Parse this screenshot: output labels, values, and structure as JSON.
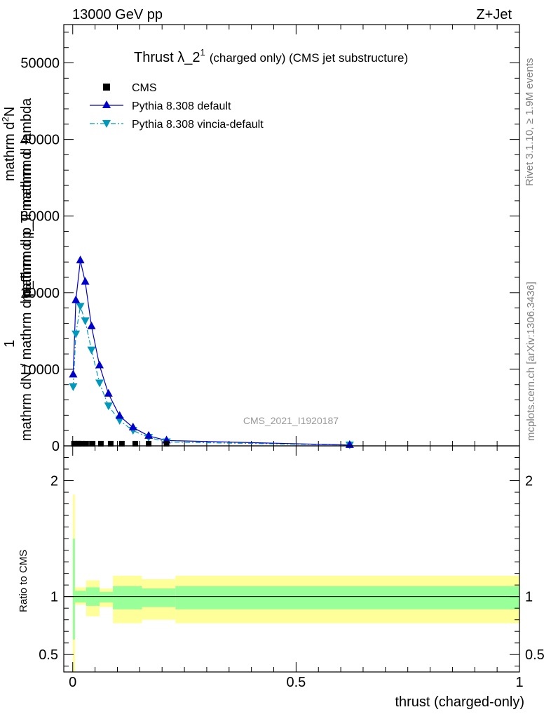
{
  "header": {
    "left": "13000 GeV pp",
    "right": "Z+Jet"
  },
  "title": {
    "main": "Thrust λ_2",
    "sup": "1",
    "detail": "(charged only) (CMS jet substructure)"
  },
  "side_labels": {
    "rivet": "Rivet 3.1.10, ≥ 1.9M events",
    "mcplots": "mcplots.cern.ch [arXiv:1306.3436]"
  },
  "watermark": "CMS_2021_I1920187",
  "y_axis_main": {
    "line1": "mathrm d",
    "line1_sup": "2",
    "line1_rest": "N",
    "line2": "mathrm d p_T mathrm d lambda",
    "line3": "mathrm d p_T mathrm d",
    "fraction_top": "1",
    "fraction_bottom": "mathrm dN / mathrm d p_T"
  },
  "y_axis_ratio": "Ratio to CMS",
  "x_axis_label": "thrust (charged-only)",
  "legend": [
    {
      "label": "CMS",
      "marker": "square",
      "color": "#000000"
    },
    {
      "label": "Pythia 8.308 default",
      "marker": "triangle-up",
      "color": "#0000cc"
    },
    {
      "label": "Pythia 8.308 vincia-default",
      "marker": "triangle-down",
      "color": "#0099bb"
    }
  ],
  "chart_data": {
    "type": "line",
    "xlim": [
      -0.02,
      1.0
    ],
    "ylim_main": [
      0,
      55000
    ],
    "ylim_ratio": [
      0.35,
      2.3
    ],
    "main_ticks": [
      {
        "v": 0,
        "label": "0"
      },
      {
        "v": 10000,
        "label": "10000"
      },
      {
        "v": 20000,
        "label": "20000"
      },
      {
        "v": 30000,
        "label": "30000"
      },
      {
        "v": 40000,
        "label": "40000"
      },
      {
        "v": 50000,
        "label": "50000"
      }
    ],
    "ratio_ticks": [
      {
        "v": 0.5,
        "label": "0.5"
      },
      {
        "v": 1,
        "label": "1"
      },
      {
        "v": 2,
        "label": "2"
      }
    ],
    "x_ticks": [
      {
        "v": 0,
        "label": "0"
      },
      {
        "v": 0.5,
        "label": "0.5"
      },
      {
        "v": 1,
        "label": "1"
      }
    ],
    "series": [
      {
        "name": "CMS",
        "x": [
          0.003,
          0.008,
          0.013,
          0.02,
          0.03,
          0.043,
          0.063,
          0.085,
          0.11,
          0.14,
          0.17,
          0.21
        ],
        "y": [
          100,
          100,
          100,
          100,
          100,
          100,
          100,
          100,
          100,
          100,
          100,
          100
        ]
      },
      {
        "name": "Pythia 8.308 default",
        "x": [
          0.001,
          0.007,
          0.017,
          0.028,
          0.042,
          0.06,
          0.08,
          0.105,
          0.135,
          0.17,
          0.21,
          0.62
        ],
        "y": [
          9300,
          19000,
          24200,
          21400,
          15600,
          10500,
          6800,
          3900,
          2400,
          1300,
          700,
          100
        ]
      },
      {
        "name": "Pythia 8.308 vincia-default",
        "x": [
          0.001,
          0.007,
          0.017,
          0.028,
          0.042,
          0.06,
          0.08,
          0.105,
          0.135,
          0.17,
          0.21,
          0.62
        ],
        "y": [
          7700,
          14600,
          18200,
          16300,
          12500,
          8200,
          5200,
          3300,
          2000,
          1100,
          500,
          100
        ]
      }
    ],
    "ratio_band_outer": [
      {
        "x0": 0.0,
        "x1": 0.005,
        "lo": 0.35,
        "hi": 1.88
      },
      {
        "x0": 0.005,
        "x1": 0.03,
        "lo": 0.93,
        "hi": 1.08
      },
      {
        "x0": 0.03,
        "x1": 0.06,
        "lo": 0.83,
        "hi": 1.14
      },
      {
        "x0": 0.06,
        "x1": 0.09,
        "lo": 0.91,
        "hi": 1.07
      },
      {
        "x0": 0.09,
        "x1": 0.155,
        "lo": 0.77,
        "hi": 1.18
      },
      {
        "x0": 0.155,
        "x1": 0.23,
        "lo": 0.8,
        "hi": 1.15
      },
      {
        "x0": 0.23,
        "x1": 1.0,
        "lo": 0.77,
        "hi": 1.18
      }
    ],
    "ratio_band_inner": [
      {
        "x0": 0.0,
        "x1": 0.005,
        "lo": 0.63,
        "hi": 1.5
      },
      {
        "x0": 0.005,
        "x1": 0.03,
        "lo": 0.95,
        "hi": 1.05
      },
      {
        "x0": 0.03,
        "x1": 0.06,
        "lo": 0.92,
        "hi": 1.08
      },
      {
        "x0": 0.06,
        "x1": 0.09,
        "lo": 0.95,
        "hi": 1.04
      },
      {
        "x0": 0.09,
        "x1": 0.155,
        "lo": 0.89,
        "hi": 1.09
      },
      {
        "x0": 0.155,
        "x1": 0.23,
        "lo": 0.91,
        "hi": 1.07
      },
      {
        "x0": 0.23,
        "x1": 1.0,
        "lo": 0.89,
        "hi": 1.09
      }
    ],
    "colors": {
      "band_outer": "#ffff99",
      "band_inner": "#99ff99",
      "default": "#0000cc",
      "vincia": "#0099bb",
      "cms": "#000000",
      "watermark": "#999999",
      "side_text": "#808080"
    }
  }
}
